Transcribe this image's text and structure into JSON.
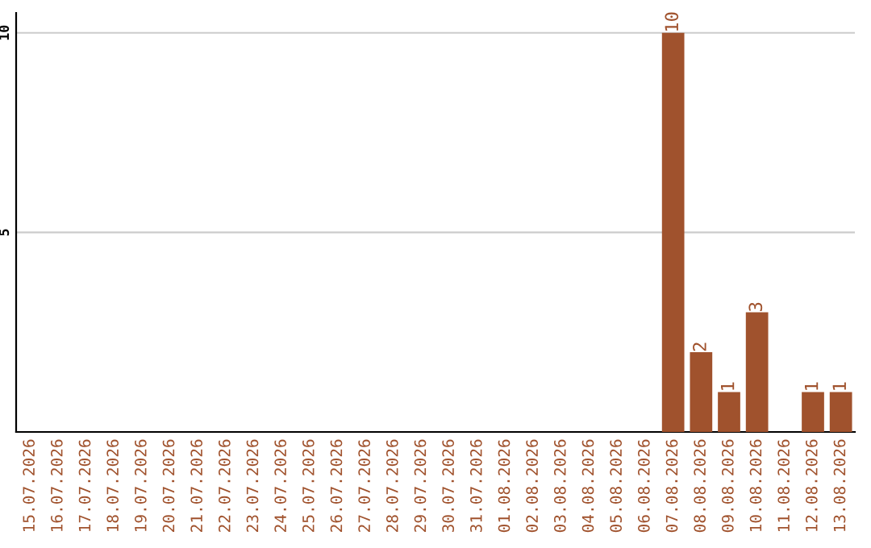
{
  "chart_data": {
    "type": "bar",
    "categories": [
      "15.07.2026",
      "16.07.2026",
      "17.07.2026",
      "18.07.2026",
      "19.07.2026",
      "20.07.2026",
      "21.07.2026",
      "22.07.2026",
      "23.07.2026",
      "24.07.2026",
      "25.07.2026",
      "26.07.2026",
      "27.07.2026",
      "28.07.2026",
      "29.07.2026",
      "30.07.2026",
      "31.07.2026",
      "01.08.2026",
      "02.08.2026",
      "03.08.2026",
      "04.08.2026",
      "05.08.2026",
      "06.08.2026",
      "07.08.2026",
      "08.08.2026",
      "09.08.2026",
      "10.08.2026",
      "11.08.2026",
      "12.08.2026",
      "13.08.2026"
    ],
    "values": [
      0,
      0,
      0,
      0,
      0,
      0,
      0,
      0,
      0,
      0,
      0,
      0,
      0,
      0,
      0,
      0,
      0,
      0,
      0,
      0,
      0,
      0,
      0,
      10,
      2,
      1,
      3,
      0,
      1,
      1
    ],
    "value_labels": [
      null,
      null,
      null,
      null,
      null,
      null,
      null,
      null,
      null,
      null,
      null,
      null,
      null,
      null,
      null,
      null,
      null,
      null,
      null,
      null,
      null,
      null,
      null,
      "10",
      "2",
      "1",
      "3",
      null,
      "1",
      "1"
    ],
    "color": "#a0522d",
    "ylim": [
      0,
      10.5
    ],
    "yticks": [
      5,
      10
    ],
    "grid": "y",
    "legend": false
  }
}
